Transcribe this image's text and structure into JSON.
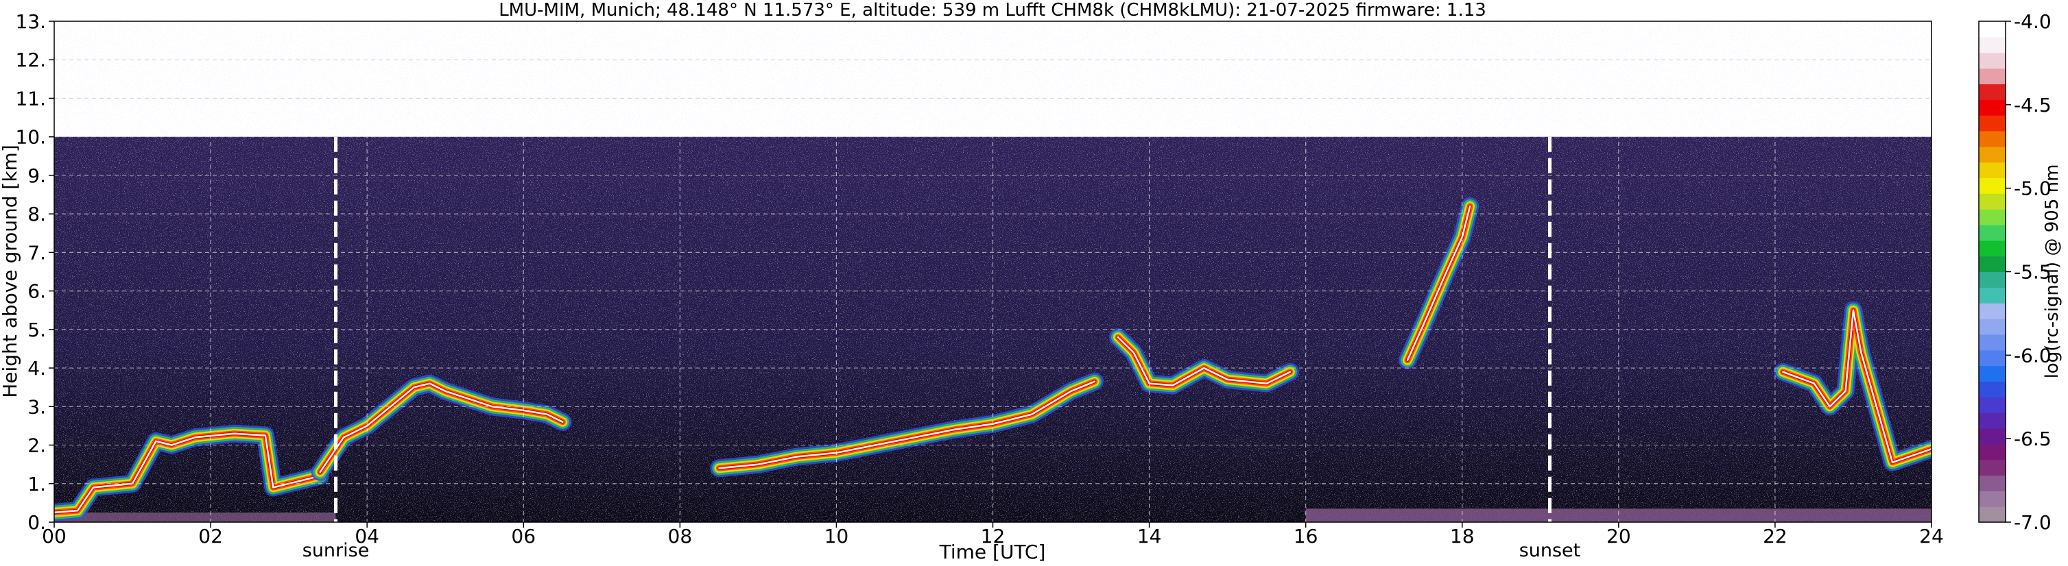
{
  "chart_data": {
    "type": "heatmap",
    "title": "LMU-MIM, Munich; 48.148° N 11.573° E, altitude: 539 m    Lufft CHM8k (CHM8kLMU): 21-07-2025    firmware: 1.13",
    "xlabel": "Time [UTC]",
    "ylabel": "Height above ground [km]",
    "xlim": [
      0,
      24
    ],
    "ylim": [
      0,
      13
    ],
    "x_ticks": [
      "00",
      "02",
      "04",
      "06",
      "08",
      "10",
      "12",
      "14",
      "16",
      "18",
      "20",
      "22",
      "24"
    ],
    "y_ticks": [
      "0.",
      "1.",
      "2.",
      "3.",
      "4.",
      "5.",
      "6.",
      "7.",
      "8.",
      "9.",
      "10.",
      "11.",
      "12.",
      "13."
    ],
    "grid": true,
    "data_top_km": 10,
    "markers": [
      {
        "label": "sunrise",
        "time_utc": 3.6
      },
      {
        "label": "sunset",
        "time_utc": 19.12
      }
    ],
    "colorbar": {
      "label": "log(rc-signal) @ 905 nm",
      "range": [
        -7.0,
        -4.0
      ],
      "ticks": [
        "-4.0",
        "-4.5",
        "-5.0",
        "-5.5",
        "-6.0",
        "-6.5",
        "-7.0"
      ],
      "colors": [
        "#a090a0",
        "#9a7aa0",
        "#8a5a90",
        "#80307a",
        "#7a1878",
        "#6a1a90",
        "#5a28b0",
        "#4a3ad0",
        "#3050e0",
        "#2070f0",
        "#5080f0",
        "#7090f0",
        "#90a8f0",
        "#a8b8f0",
        "#40c0b0",
        "#30b090",
        "#10a040",
        "#10c030",
        "#40d060",
        "#80e040",
        "#c0e020",
        "#f0f000",
        "#f0d000",
        "#f0a000",
        "#f07000",
        "#f03000",
        "#f00000",
        "#e02020",
        "#e8a0a8",
        "#f0d0d8",
        "#f8f0f4",
        "#ffffff"
      ]
    },
    "cloud_layers": [
      {
        "name": "pbl-low",
        "points": [
          [
            0.0,
            0.25
          ],
          [
            0.3,
            0.3
          ],
          [
            0.5,
            0.9
          ],
          [
            1.0,
            1.0
          ],
          [
            1.3,
            2.1
          ],
          [
            1.5,
            2.0
          ],
          [
            1.8,
            2.2
          ],
          [
            2.3,
            2.3
          ],
          [
            2.7,
            2.25
          ],
          [
            2.8,
            0.9
          ],
          [
            3.0,
            1.0
          ],
          [
            3.4,
            1.2
          ]
        ]
      },
      {
        "name": "morning-convection",
        "points": [
          [
            3.4,
            1.3
          ],
          [
            3.7,
            2.2
          ],
          [
            4.0,
            2.5
          ],
          [
            4.3,
            3.0
          ],
          [
            4.6,
            3.5
          ],
          [
            4.8,
            3.6
          ],
          [
            5.0,
            3.4
          ],
          [
            5.3,
            3.2
          ],
          [
            5.6,
            3.0
          ],
          [
            6.0,
            2.9
          ],
          [
            6.3,
            2.8
          ],
          [
            6.5,
            2.6
          ]
        ]
      },
      {
        "name": "pbl-top-rising",
        "points": [
          [
            8.5,
            1.4
          ],
          [
            9.0,
            1.5
          ],
          [
            9.5,
            1.7
          ],
          [
            10.0,
            1.8
          ],
          [
            10.5,
            2.0
          ],
          [
            11.0,
            2.2
          ],
          [
            11.5,
            2.4
          ],
          [
            12.0,
            2.55
          ],
          [
            12.5,
            2.8
          ],
          [
            13.0,
            3.4
          ],
          [
            13.3,
            3.65
          ]
        ]
      },
      {
        "name": "afternoon-cumulus",
        "points": [
          [
            13.6,
            4.8
          ],
          [
            13.8,
            4.4
          ],
          [
            14.0,
            3.6
          ],
          [
            14.3,
            3.55
          ],
          [
            14.7,
            4.0
          ],
          [
            15.0,
            3.7
          ],
          [
            15.5,
            3.6
          ],
          [
            15.8,
            3.9
          ]
        ]
      },
      {
        "name": "evening-cloud",
        "points": [
          [
            22.1,
            3.9
          ],
          [
            22.5,
            3.6
          ],
          [
            22.7,
            3.0
          ],
          [
            22.9,
            3.4
          ],
          [
            23.0,
            5.5
          ],
          [
            23.1,
            4.4
          ],
          [
            23.5,
            1.55
          ],
          [
            24.0,
            1.9
          ]
        ]
      },
      {
        "name": "mid-level-17-18h",
        "points": [
          [
            17.3,
            4.2
          ],
          [
            17.5,
            5.1
          ],
          [
            17.8,
            6.5
          ],
          [
            18.0,
            7.4
          ],
          [
            18.1,
            8.2
          ]
        ]
      }
    ]
  }
}
